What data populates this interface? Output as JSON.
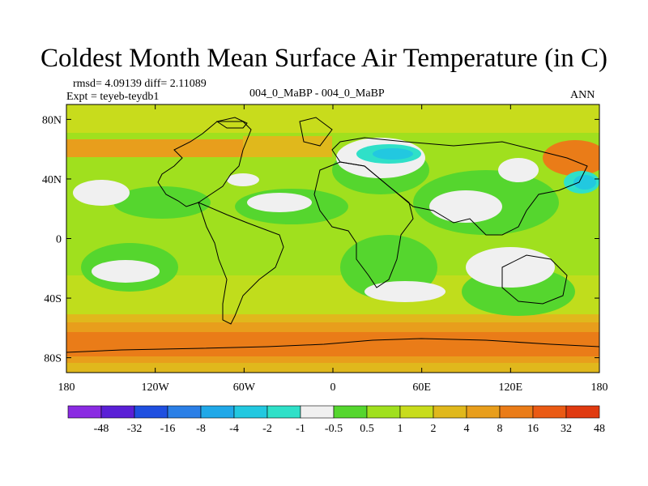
{
  "title": "Coldest Month Mean Surface Air Temperature (in C)",
  "stats": {
    "rmsd_diff": "rmsd= 4.09139 diff= 2.11089",
    "expt": "Expt = teyeb-teydb1",
    "comparison": "004_0_MaBP - 004_0_MaBP",
    "season": "ANN"
  },
  "axes": {
    "lat_ticks": [
      {
        "value": 80,
        "label": "80N"
      },
      {
        "value": 40,
        "label": "40N"
      },
      {
        "value": 0,
        "label": "0"
      },
      {
        "value": -40,
        "label": "40S"
      },
      {
        "value": -80,
        "label": "80S"
      }
    ],
    "lon_ticks": [
      {
        "value": -180,
        "label": "180"
      },
      {
        "value": -120,
        "label": "120W"
      },
      {
        "value": -60,
        "label": "60W"
      },
      {
        "value": 0,
        "label": "0"
      },
      {
        "value": 60,
        "label": "60E"
      },
      {
        "value": 120,
        "label": "120E"
      },
      {
        "value": 180,
        "label": "180"
      }
    ]
  },
  "colorbar": {
    "colors": [
      "#8a2be2",
      "#5a1fd6",
      "#1f4fe0",
      "#2b7fe6",
      "#20a8e8",
      "#22c8e0",
      "#2fe0c8",
      "#f0f0f0",
      "#55d62e",
      "#a0e01e",
      "#c8dc1c",
      "#e0b81c",
      "#e89e1c",
      "#ea7c18",
      "#ea5a14",
      "#e03a10"
    ],
    "labels": [
      "-48",
      "-32",
      "-16",
      "-8",
      "-4",
      "-2",
      "-1",
      "-0.5",
      "0.5",
      "1",
      "2",
      "4",
      "8",
      "16",
      "32",
      "48"
    ]
  }
}
